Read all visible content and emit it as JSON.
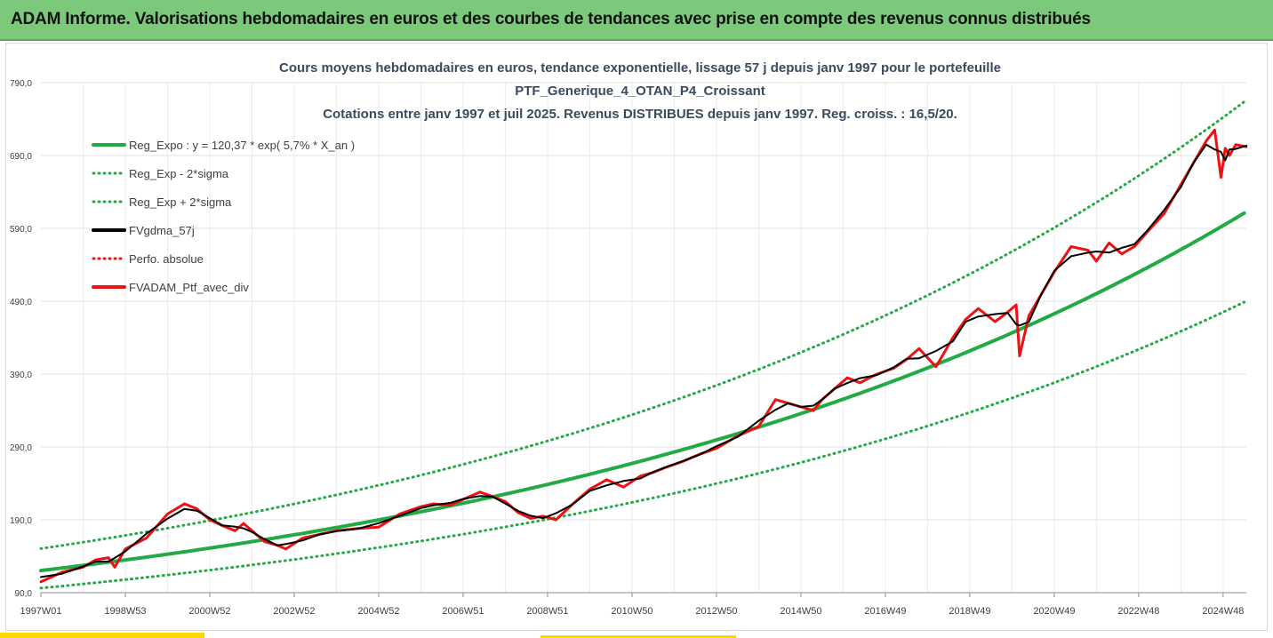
{
  "header": {
    "title": "ADAM Informe. Valorisations hebdomadaires en euros et des courbes de tendances avec prise en compte des revenus connus distribués"
  },
  "chart_data": {
    "type": "line",
    "title_lines": [
      "Cours moyens hebdomadaires  en euros, tendance exponentielle, lissage 57 j depuis janv 1997 pour le portefeuille",
      "PTF_Generique_4_OTAN_P4_Croissant",
      "Cotations  entre janv 1997 et juil 2025. Revenus DISTRIBUES depuis janv 1997. Reg. croiss. : 16,5/20."
    ],
    "xlabel": "",
    "ylabel": "",
    "ylim": [
      90,
      790
    ],
    "x_range": [
      1997.0,
      2025.55
    ],
    "y_ticks": [
      "90,0",
      "190,0",
      "290,0",
      "390,0",
      "490,0",
      "590,0",
      "690,0",
      "790,0"
    ],
    "y_tick_values": [
      90,
      190,
      290,
      390,
      490,
      590,
      690,
      790
    ],
    "x_tick_labels": [
      "1997W01",
      "1998W53",
      "2000W52",
      "2002W52",
      "2004W52",
      "2006W51",
      "2008W51",
      "2010W50",
      "2012W50",
      "2014W50",
      "2016W49",
      "2018W49",
      "2020W49",
      "2022W48",
      "2024W48"
    ],
    "x_tick_years": [
      1997.0,
      1999.0,
      2001.0,
      2003.0,
      2005.0,
      2007.0,
      2009.0,
      2011.0,
      2013.0,
      2015.0,
      2017.0,
      2019.0,
      2021.0,
      2023.0,
      2025.0
    ],
    "grid": true,
    "legend_position": "top-left",
    "trend": {
      "base": 120.37,
      "rate": 0.057,
      "upper_ratio": 1.25,
      "lower_ratio": 0.8
    },
    "series": [
      {
        "name": "Reg_Expo : y = 120,37 * exp( 5,7% *  X_an )",
        "color": "#22aa44",
        "style": "solid",
        "kind": "trend"
      },
      {
        "name": "Reg_Exp - 2*sigma",
        "color": "#22aa44",
        "style": "dotted",
        "kind": "lower"
      },
      {
        "name": "Reg_Exp + 2*sigma",
        "color": "#22aa44",
        "style": "dotted",
        "kind": "upper"
      },
      {
        "name": "FVgdma_57j",
        "color": "#000000",
        "style": "solid",
        "kind": "smooth"
      },
      {
        "name": "Perfo. absolue",
        "color": "#ee1111",
        "style": "dotted",
        "kind": "none"
      },
      {
        "name": "FVADAM_Ptf_avec_div",
        "color": "#ee1111",
        "style": "solid",
        "kind": "price"
      }
    ],
    "price": {
      "x": [
        1997.0,
        1997.5,
        1998.0,
        1998.3,
        1998.6,
        1998.75,
        1999.0,
        1999.5,
        2000.0,
        2000.4,
        2000.7,
        2001.0,
        2001.3,
        2001.6,
        2001.8,
        2002.0,
        2002.3,
        2002.6,
        2002.8,
        2003.2,
        2003.6,
        2004.0,
        2004.5,
        2005.0,
        2005.5,
        2006.0,
        2006.3,
        2006.7,
        2007.0,
        2007.4,
        2007.7,
        2008.0,
        2008.3,
        2008.6,
        2008.9,
        2009.2,
        2009.6,
        2010.0,
        2010.4,
        2010.8,
        2011.2,
        2011.5,
        2011.8,
        2012.2,
        2012.6,
        2013.0,
        2013.5,
        2014.0,
        2014.4,
        2014.7,
        2015.0,
        2015.3,
        2015.5,
        2015.8,
        2016.1,
        2016.4,
        2016.8,
        2017.2,
        2017.5,
        2017.8,
        2018.2,
        2018.6,
        2018.9,
        2019.2,
        2019.6,
        2019.9,
        2020.1,
        2020.18,
        2020.4,
        2020.7,
        2021.0,
        2021.4,
        2021.8,
        2022.0,
        2022.3,
        2022.6,
        2022.9,
        2023.2,
        2023.6,
        2024.0,
        2024.3,
        2024.6,
        2024.8,
        2024.95,
        2025.05,
        2025.15,
        2025.3,
        2025.55
      ],
      "y": [
        105,
        118,
        125,
        135,
        138,
        125,
        150,
        165,
        198,
        212,
        205,
        190,
        182,
        175,
        185,
        175,
        160,
        155,
        150,
        165,
        170,
        175,
        178,
        180,
        198,
        208,
        212,
        210,
        218,
        228,
        222,
        215,
        200,
        192,
        195,
        190,
        212,
        232,
        245,
        235,
        250,
        255,
        262,
        270,
        280,
        288,
        305,
        318,
        355,
        350,
        345,
        340,
        355,
        370,
        385,
        378,
        390,
        398,
        410,
        425,
        400,
        440,
        465,
        480,
        462,
        475,
        485,
        415,
        470,
        500,
        530,
        565,
        560,
        545,
        570,
        555,
        565,
        585,
        610,
        650,
        680,
        710,
        725,
        660,
        700,
        690,
        705,
        702
      ]
    }
  }
}
